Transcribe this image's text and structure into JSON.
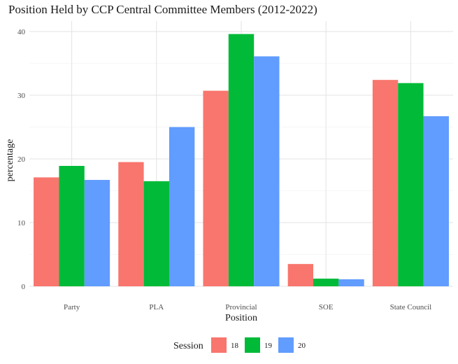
{
  "chart_data": {
    "type": "bar",
    "title": "Position Held by CCP Central Committee Members (2012-2022)",
    "xlabel": "Position",
    "ylabel": "percentage",
    "categories": [
      "Party",
      "PLA",
      "Provincial",
      "SOE",
      "State Council"
    ],
    "series": [
      {
        "name": "18",
        "color": "#F8766D",
        "values": [
          17.1,
          19.5,
          30.7,
          3.5,
          32.4
        ]
      },
      {
        "name": "19",
        "color": "#00BA38",
        "values": [
          18.9,
          16.5,
          39.6,
          1.2,
          31.9
        ]
      },
      {
        "name": "20",
        "color": "#619CFF",
        "values": [
          16.7,
          25.0,
          36.1,
          1.1,
          26.7
        ]
      }
    ],
    "ylim": [
      0,
      41
    ],
    "yticks": [
      0,
      10,
      20,
      30,
      40
    ],
    "grid": true,
    "legend": {
      "title": "Session",
      "position": "bottom"
    }
  }
}
